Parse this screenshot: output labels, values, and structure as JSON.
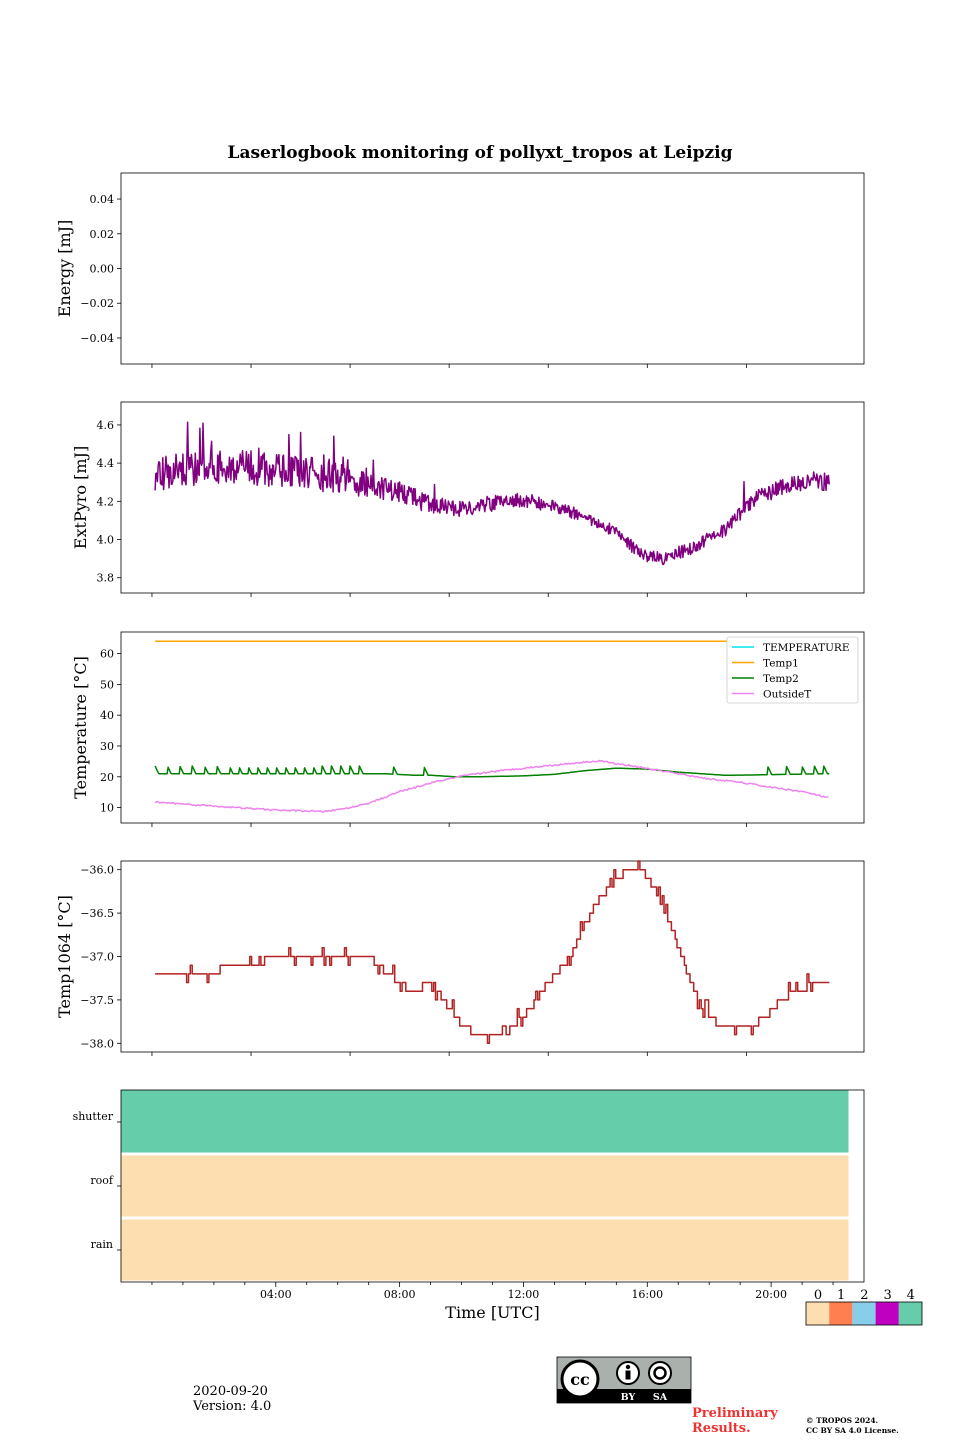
{
  "title": "Laserlogbook monitoring of pollyxt_tropos at Leipzig",
  "colors": {
    "extpyro": "#800080",
    "temperature": "#00e5ee",
    "temp1": "#ffa500",
    "temp2": "#008000",
    "outside": "#ee82ee",
    "temp1064": "#b22222",
    "state_0": "#fddeb0",
    "state_1": "#ff7f50",
    "state_2": "#87ceeb",
    "state_3": "#c000c0",
    "state_4": "#66cdaa"
  },
  "chart_data": [
    {
      "type": "line",
      "name": "energy",
      "ylabel": "Energy [mJ]",
      "ylim": [
        -0.055,
        0.055
      ],
      "yticks": [
        0.04,
        0.02,
        0.0,
        -0.02,
        -0.04
      ],
      "ytick_labels": [
        "0.04",
        "0.02",
        "0.00",
        "−0.02",
        "−0.04"
      ],
      "xlim_hours": [
        -1.0,
        23.0
      ],
      "series": []
    },
    {
      "type": "line",
      "name": "extpyro",
      "ylabel": "ExtPyro [mJ]",
      "ylim": [
        3.72,
        4.72
      ],
      "yticks": [
        4.6,
        4.4,
        4.2,
        4.0,
        3.8
      ],
      "ytick_labels": [
        "4.6",
        "4.4",
        "4.2",
        "4.0",
        "3.8"
      ],
      "xlim_hours": [
        -1.0,
        23.0
      ],
      "series": [
        {
          "name": "ExtPyro",
          "color_key": "extpyro",
          "base_x": [
            0.1,
            1.0,
            2.0,
            3.0,
            4.0,
            5.0,
            6.0,
            6.6,
            7.0,
            8.0,
            9.0,
            10.0,
            11.0,
            12.0,
            13.0,
            14.0,
            15.0,
            15.8,
            16.5,
            17.5,
            18.5,
            19.5,
            20.5,
            21.5,
            21.9
          ],
          "base_y": [
            4.33,
            4.37,
            4.38,
            4.38,
            4.36,
            4.35,
            4.33,
            4.3,
            4.28,
            4.25,
            4.18,
            4.16,
            4.19,
            4.21,
            4.17,
            4.12,
            4.04,
            3.92,
            3.9,
            3.96,
            4.05,
            4.22,
            4.28,
            4.31,
            4.3
          ],
          "noise_amp": [
            0.3,
            0.3,
            0.2,
            0.15,
            0.1,
            0.12,
            0.18
          ],
          "noise_x": [
            0.1,
            6.0,
            7.0,
            10.0,
            14.0,
            19.0,
            21.9
          ]
        }
      ]
    },
    {
      "type": "line",
      "name": "temperature",
      "ylabel": "Temperature [°C]",
      "ylim": [
        5,
        67
      ],
      "yticks": [
        60,
        50,
        40,
        30,
        20,
        10
      ],
      "ytick_labels": [
        "60",
        "50",
        "40",
        "30",
        "20",
        "10"
      ],
      "xlim_hours": [
        -1.0,
        23.0
      ],
      "legend_position": "upper-right",
      "series": [
        {
          "name": "TEMPERATURE",
          "color_key": "temperature",
          "x": [],
          "y": []
        },
        {
          "name": "Temp1",
          "color_key": "temp1",
          "x": [
            0.1,
            21.9
          ],
          "y": [
            64,
            64
          ]
        },
        {
          "name": "Temp2",
          "color_key": "temp2",
          "x": [
            0.1,
            1.0,
            2.0,
            3.0,
            4.0,
            5.0,
            6.0,
            6.8,
            7.5,
            8.5,
            9.0,
            9.8,
            10.5,
            12.0,
            13.0,
            14.0,
            15.0,
            16.0,
            17.0,
            18.5,
            19.5,
            20.5,
            21.9
          ],
          "y": [
            21.0,
            21.0,
            21.0,
            21.0,
            21.0,
            21.0,
            21.0,
            21.0,
            21.0,
            20.5,
            20.5,
            20.0,
            20.0,
            20.3,
            20.8,
            22.0,
            22.8,
            22.5,
            21.5,
            20.5,
            20.6,
            20.8,
            21.0
          ],
          "spike_x": [
            0.1,
            0.5,
            0.9,
            1.3,
            1.7,
            2.1,
            2.5,
            2.8,
            3.1,
            3.4,
            3.7,
            4.0,
            4.3,
            4.6,
            4.9,
            5.2,
            5.5,
            5.8,
            6.1,
            6.4,
            6.7,
            7.8,
            8.8,
            19.9,
            20.5,
            21.0,
            21.4,
            21.7
          ],
          "spike_h": 2.5
        },
        {
          "name": "OutsideT",
          "color_key": "outside",
          "x": [
            0.1,
            1.0,
            2.0,
            3.0,
            4.0,
            5.0,
            5.5,
            6.0,
            6.5,
            7.0,
            7.5,
            8.0,
            8.5,
            9.0,
            10.0,
            11.0,
            12.0,
            13.0,
            14.0,
            14.5,
            15.0,
            15.5,
            16.0,
            17.0,
            18.0,
            19.0,
            20.0,
            21.0,
            21.9
          ],
          "y": [
            11.8,
            11.2,
            10.5,
            9.8,
            9.2,
            8.9,
            8.7,
            9.3,
            10.2,
            11.5,
            13.2,
            15.2,
            16.5,
            18.0,
            20.2,
            21.7,
            22.8,
            23.8,
            24.8,
            25.2,
            24.2,
            23.6,
            22.7,
            21.0,
            19.3,
            18.2,
            16.6,
            15.2,
            13.1
          ]
        }
      ]
    },
    {
      "type": "line",
      "name": "temp1064",
      "ylabel": "Temp1064 [°C]",
      "ylim": [
        -38.1,
        -35.9
      ],
      "yticks": [
        -36.0,
        -36.5,
        -37.0,
        -37.5,
        -38.0
      ],
      "ytick_labels": [
        "−36.0",
        "−36.5",
        "−37.0",
        "−37.5",
        "−38.0"
      ],
      "xlim_hours": [
        -1.0,
        23.0
      ],
      "series": [
        {
          "name": "Temp1064",
          "color_key": "temp1064",
          "x": [
            0.1,
            0.5,
            1.0,
            1.8,
            2.5,
            3.2,
            4.0,
            5.0,
            6.0,
            6.6,
            7.0,
            7.3,
            7.6,
            8.0,
            8.3,
            8.6,
            8.8,
            9.0,
            9.2,
            9.6,
            10.0,
            10.5,
            11.0,
            11.6,
            12.2,
            12.8,
            13.5,
            14.0,
            14.5,
            15.0,
            15.4,
            15.8,
            16.2,
            16.6,
            17.0,
            17.4,
            17.8,
            18.3,
            18.8,
            19.3,
            19.8,
            20.3,
            20.8,
            21.3,
            21.9
          ],
          "y": [
            -37.2,
            -37.2,
            -37.2,
            -37.2,
            -37.1,
            -37.1,
            -37.0,
            -37.0,
            -37.0,
            -37.0,
            -37.0,
            -37.1,
            -37.2,
            -37.3,
            -37.4,
            -37.4,
            -37.3,
            -37.3,
            -37.4,
            -37.6,
            -37.8,
            -37.9,
            -37.9,
            -37.8,
            -37.6,
            -37.3,
            -37.0,
            -36.6,
            -36.3,
            -36.1,
            -36.0,
            -36.0,
            -36.2,
            -36.5,
            -36.9,
            -37.3,
            -37.6,
            -37.8,
            -37.8,
            -37.8,
            -37.7,
            -37.5,
            -37.4,
            -37.3,
            -37.3
          ],
          "jitter": 0.1
        }
      ]
    },
    {
      "type": "heatmap",
      "name": "status",
      "xlim_hours": [
        -1.0,
        23.0
      ],
      "rows": [
        {
          "label": "shutter",
          "state": 4
        },
        {
          "label": "roof",
          "state": 0
        },
        {
          "label": "rain",
          "state": 0
        }
      ],
      "data_end_hour": 22.5,
      "xticks": [
        "04:00",
        "08:00",
        "12:00",
        "16:00",
        "20:00"
      ],
      "xtick_hours": [
        4,
        8,
        12,
        16,
        20
      ],
      "xlabel": "Time [UTC]"
    }
  ],
  "colorbar": {
    "labels": [
      "0",
      "1",
      "2",
      "3",
      "4"
    ]
  },
  "footer": {
    "date": "2020-09-20",
    "version": "Version: 4.0",
    "preliminary_line1": "Preliminary",
    "preliminary_line2": "Results.",
    "copyright_line1": "© TROPOS 2024.",
    "copyright_line2": "CC BY SA 4.0 License.",
    "license_by": "BY",
    "license_sa": "SA",
    "license_cc": "cc"
  }
}
